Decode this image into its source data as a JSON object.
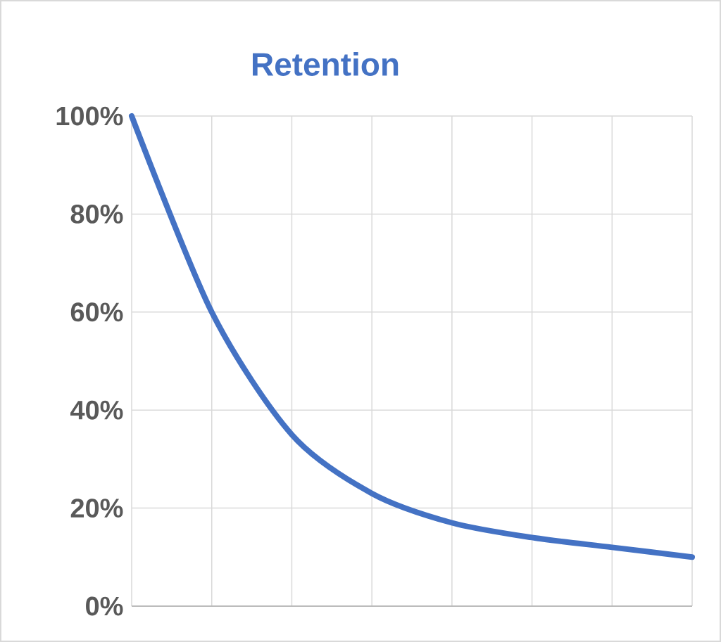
{
  "chart_data": {
    "type": "line",
    "title": "Retention",
    "categories": [
      null,
      null,
      null,
      null,
      null,
      null,
      null,
      null
    ],
    "series": [
      {
        "color": "#4472c4",
        "values": [
          100,
          60,
          35,
          23,
          17,
          14,
          12,
          10
        ]
      }
    ],
    "ylim": [
      0,
      100
    ],
    "yticks": [
      {
        "value": 0,
        "label": "0%"
      },
      {
        "value": 20,
        "label": "20%"
      },
      {
        "value": 40,
        "label": "40%"
      },
      {
        "value": 60,
        "label": "60%"
      },
      {
        "value": 80,
        "label": "80%"
      },
      {
        "value": 100,
        "label": "100%"
      }
    ],
    "grid": true,
    "tick_labels": "y",
    "marker": "none",
    "line_style": "solid"
  }
}
